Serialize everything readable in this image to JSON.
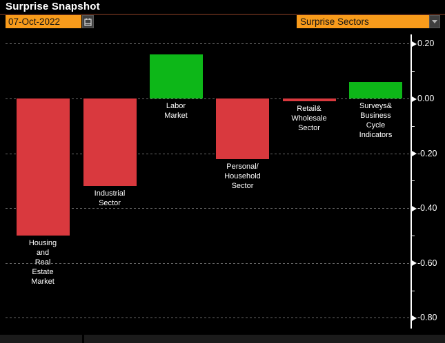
{
  "title": "Surprise Snapshot",
  "controls": {
    "date_field": {
      "value": "07-Oct-2022"
    },
    "sector_dropdown": {
      "value": "Surprise Sectors"
    }
  },
  "colors": {
    "background": "#000000",
    "accent_orange": "#f89b1b",
    "positive_green": "#0db718",
    "negative_red": "#d9393e",
    "title_underline": "#4a2214",
    "grid_gray": "#6a6a6a",
    "axis_white": "#ffffff"
  },
  "chart_data": {
    "type": "bar",
    "title": "Surprise Snapshot",
    "categories": [
      "Housing and Real Estate Market",
      "Industrial Sector",
      "Labor Market",
      "Personal/Household Sector",
      "Retail& Wholesale Sector",
      "Surveys& Business Cycle Indicators"
    ],
    "category_label_lines": [
      [
        "Housing",
        "and",
        "Real",
        "Estate",
        "Market"
      ],
      [
        "Industrial",
        "Sector"
      ],
      [
        "Labor",
        "Market"
      ],
      [
        "Personal/",
        "Household",
        "Sector"
      ],
      [
        "Retail&",
        "Wholesale",
        "Sector"
      ],
      [
        "Surveys&",
        "Business",
        "Cycle",
        "Indicators"
      ]
    ],
    "values": [
      -0.5,
      -0.32,
      0.16,
      -0.22,
      -0.01,
      0.06
    ],
    "xlabel": "",
    "ylabel": "",
    "ylim": [
      -0.84,
      0.235
    ],
    "yticks": [
      0.2,
      0.0,
      -0.2,
      -0.4,
      -0.6,
      -0.8
    ],
    "ytick_labels": [
      "0.20",
      "0.00",
      "-0.20",
      "-0.40",
      "-0.60",
      "-0.80"
    ],
    "minor_ticks": [
      0.1,
      -0.1,
      -0.3,
      -0.5,
      -0.7
    ],
    "grid": "dashed horizontal",
    "legend": "none",
    "axis_side": "right",
    "positive_color": "#0db718",
    "negative_color": "#d9393e"
  }
}
